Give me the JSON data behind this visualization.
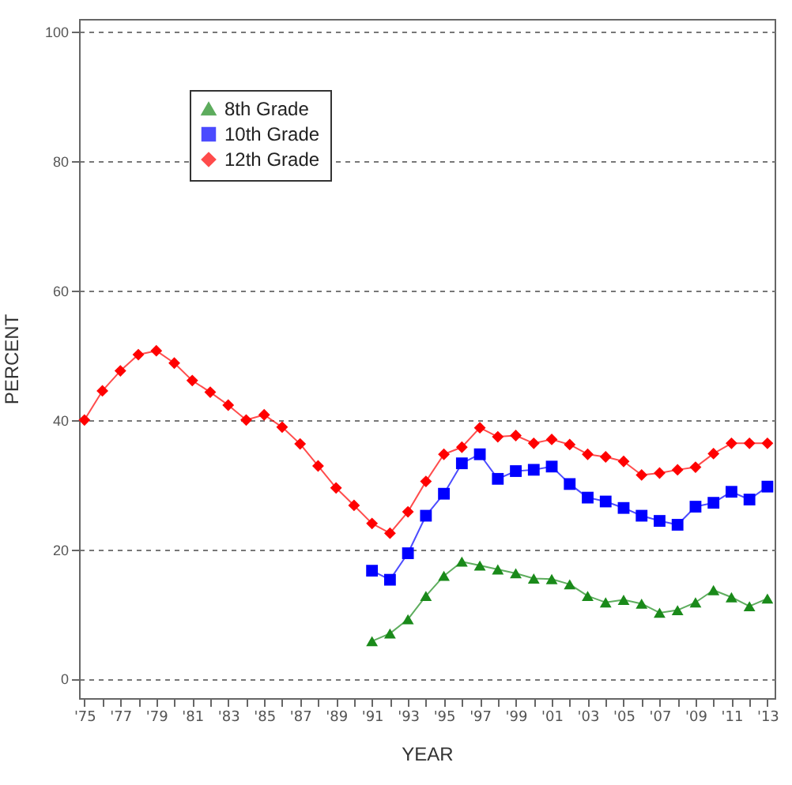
{
  "chart_data": {
    "type": "line",
    "xlabel": "YEAR",
    "ylabel": "PERCENT",
    "x": [
      1975,
      1976,
      1977,
      1978,
      1979,
      1980,
      1981,
      1982,
      1983,
      1984,
      1985,
      1986,
      1987,
      1988,
      1989,
      1990,
      1991,
      1992,
      1993,
      1994,
      1995,
      1996,
      1997,
      1998,
      1999,
      2000,
      2001,
      2002,
      2003,
      2004,
      2005,
      2006,
      2007,
      2008,
      2009,
      2010,
      2011,
      2012,
      2013
    ],
    "series": [
      {
        "name": "8th Grade",
        "color": "#1a8a1a",
        "marker": "triangle",
        "values": [
          null,
          null,
          null,
          null,
          null,
          null,
          null,
          null,
          null,
          null,
          null,
          null,
          null,
          null,
          null,
          null,
          5.8,
          7.0,
          9.2,
          12.8,
          15.9,
          18.1,
          17.5,
          16.9,
          16.3,
          15.5,
          15.4,
          14.6,
          12.8,
          11.8,
          12.2,
          11.6,
          10.2,
          10.6,
          11.8,
          13.7,
          12.6,
          11.2,
          12.4
        ]
      },
      {
        "name": "10th Grade",
        "color": "#0000ff",
        "marker": "square",
        "values": [
          null,
          null,
          null,
          null,
          null,
          null,
          null,
          null,
          null,
          null,
          null,
          null,
          null,
          null,
          null,
          null,
          16.7,
          15.3,
          19.4,
          25.2,
          28.6,
          33.3,
          34.7,
          30.9,
          32.1,
          32.3,
          32.8,
          30.1,
          28.0,
          27.4,
          26.4,
          25.2,
          24.4,
          23.8,
          26.6,
          27.2,
          28.9,
          27.7,
          29.7
        ]
      },
      {
        "name": "12th Grade",
        "color": "#ff0000",
        "marker": "diamond",
        "values": [
          40.0,
          44.5,
          47.6,
          50.1,
          50.7,
          48.8,
          46.1,
          44.3,
          42.3,
          40.0,
          40.8,
          38.9,
          36.3,
          32.9,
          29.5,
          26.8,
          24.0,
          22.5,
          25.8,
          30.5,
          34.7,
          35.8,
          38.8,
          37.4,
          37.6,
          36.4,
          37.0,
          36.2,
          34.7,
          34.3,
          33.6,
          31.5,
          31.8,
          32.3,
          32.7,
          34.8,
          36.4,
          36.4,
          36.4
        ]
      }
    ],
    "xlim": [
      1974.7,
      2013.4
    ],
    "xticks": [
      {
        "value": 1975,
        "label": "'75"
      },
      {
        "value": 1976,
        "label": null
      },
      {
        "value": 1977,
        "label": "'77"
      },
      {
        "value": 1978,
        "label": null
      },
      {
        "value": 1979,
        "label": "'79"
      },
      {
        "value": 1980,
        "label": null
      },
      {
        "value": 1981,
        "label": "'81"
      },
      {
        "value": 1982,
        "label": null
      },
      {
        "value": 1983,
        "label": "'83"
      },
      {
        "value": 1984,
        "label": null
      },
      {
        "value": 1985,
        "label": "'85"
      },
      {
        "value": 1986,
        "label": null
      },
      {
        "value": 1987,
        "label": "'87"
      },
      {
        "value": 1988,
        "label": null
      },
      {
        "value": 1989,
        "label": "'89"
      },
      {
        "value": 1990,
        "label": null
      },
      {
        "value": 1991,
        "label": "'91"
      },
      {
        "value": 1992,
        "label": null
      },
      {
        "value": 1993,
        "label": "'93"
      },
      {
        "value": 1994,
        "label": null
      },
      {
        "value": 1995,
        "label": "'95"
      },
      {
        "value": 1996,
        "label": null
      },
      {
        "value": 1997,
        "label": "'97"
      },
      {
        "value": 1998,
        "label": null
      },
      {
        "value": 1999,
        "label": "'99"
      },
      {
        "value": 2000,
        "label": null
      },
      {
        "value": 2001,
        "label": "'01"
      },
      {
        "value": 2002,
        "label": null
      },
      {
        "value": 2003,
        "label": "'03"
      },
      {
        "value": 2004,
        "label": null
      },
      {
        "value": 2005,
        "label": "'05"
      },
      {
        "value": 2006,
        "label": null
      },
      {
        "value": 2007,
        "label": "'07"
      },
      {
        "value": 2008,
        "label": null
      },
      {
        "value": 2009,
        "label": "'09"
      },
      {
        "value": 2010,
        "label": null
      },
      {
        "value": 2011,
        "label": "'11"
      },
      {
        "value": 2012,
        "label": null
      },
      {
        "value": 2013,
        "label": "'13"
      }
    ],
    "ylim": [
      -3,
      102
    ],
    "yticks": [
      0,
      20,
      40,
      60,
      80,
      100
    ],
    "grid": "y",
    "legend": "top left",
    "line_style": "solid"
  }
}
